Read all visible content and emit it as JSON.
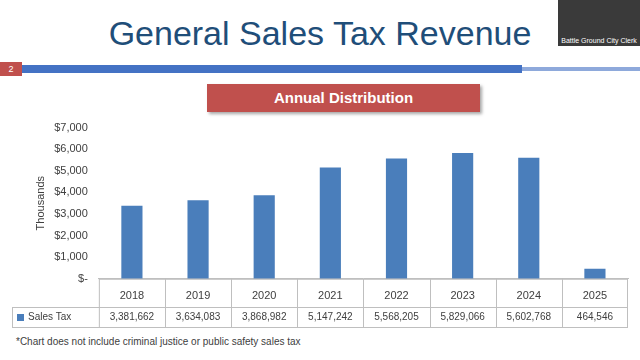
{
  "page": {
    "title": "General Sales Tax Revenue",
    "number": 2,
    "footnote": "*Chart does not include criminal justice or public safety sales tax",
    "overlay_label": "Battle Ground City Clerk"
  },
  "chart_data": {
    "type": "bar",
    "title": "Annual Distribution",
    "y_label": "Thousands",
    "categories": [
      "2018",
      "2019",
      "2020",
      "2021",
      "2022",
      "2023",
      "2024",
      "2025"
    ],
    "series": [
      {
        "name": "Sales Tax",
        "color": "#4a7ebb",
        "values": [
          3381.662,
          3634.083,
          3868.982,
          5147.242,
          5568.205,
          5829.066,
          5602.768,
          464.546
        ],
        "value_labels": [
          "3,381,662",
          "3,634,083",
          "3,868,982",
          "5,147,242",
          "5,568,205",
          "5,829,066",
          "5,602,768",
          "464,546"
        ]
      }
    ],
    "ylim": [
      0,
      7000
    ],
    "yticks": [
      {
        "value": 0,
        "label": "$-"
      },
      {
        "value": 1000,
        "label": "$1,000"
      },
      {
        "value": 2000,
        "label": "$2,000"
      },
      {
        "value": 3000,
        "label": "$3,000"
      },
      {
        "value": 4000,
        "label": "$4,000"
      },
      {
        "value": 5000,
        "label": "$5,000"
      },
      {
        "value": 6000,
        "label": "$6,000"
      },
      {
        "value": 7000,
        "label": "$7,000"
      }
    ],
    "grid": false
  }
}
